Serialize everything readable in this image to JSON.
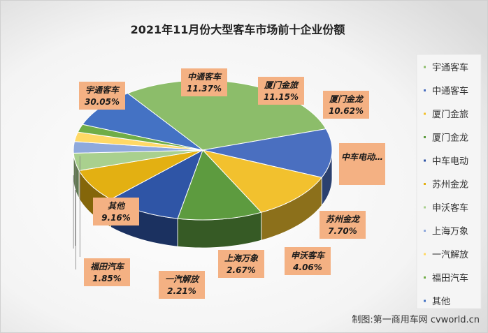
{
  "chart_data": {
    "type": "pie",
    "title": "2021年11月份大型客车市场前十企业份额",
    "slices": [
      {
        "name": "宇通客车",
        "value": 30.05,
        "label": "30.05%",
        "color": "#8cbd6a"
      },
      {
        "name": "中通客车",
        "value": 11.37,
        "label": "11.37%",
        "color": "#4a6fc0"
      },
      {
        "name": "厦门金旅",
        "value": 11.15,
        "label": "11.15%",
        "color": "#f2c12e"
      },
      {
        "name": "厦门金龙",
        "value": 10.62,
        "label": "10.62%",
        "color": "#5d9b3f"
      },
      {
        "name": "中车电动",
        "value": 9.5,
        "label": "",
        "color": "#2f55a6"
      },
      {
        "name": "苏州金龙",
        "value": 7.7,
        "label": "7.70%",
        "color": "#e3b012"
      },
      {
        "name": "申沃客车",
        "value": 4.06,
        "label": "4.06%",
        "color": "#a9d08e"
      },
      {
        "name": "上海万象",
        "value": 2.67,
        "label": "2.67%",
        "color": "#8fa9dc"
      },
      {
        "name": "一汽解放",
        "value": 2.21,
        "label": "2.21%",
        "color": "#ffd966"
      },
      {
        "name": "福田汽车",
        "value": 1.85,
        "label": "1.85%",
        "color": "#70ad47"
      },
      {
        "name": "其他",
        "value": 9.16,
        "label": "9.16%",
        "color": "#4472c4"
      }
    ],
    "callout_labels": [
      {
        "name": "宇通客车",
        "value": "30.05%"
      },
      {
        "name": "中通客车",
        "value": "11.37%"
      },
      {
        "name": "厦门金旅",
        "value": "11.15%"
      },
      {
        "name": "厦门金龙",
        "value": "10.62%"
      },
      {
        "name": "中车电动…",
        "value": ""
      },
      {
        "name": "苏州金龙",
        "value": "7.70%"
      },
      {
        "name": "申沃客车",
        "value": "4.06%"
      },
      {
        "name": "上海万象",
        "value": "2.67%"
      },
      {
        "name": "一汽解放",
        "value": "2.21%"
      },
      {
        "name": "福田汽车",
        "value": "1.85%"
      },
      {
        "name": "其他",
        "value": "9.16%"
      }
    ],
    "legend": {
      "placement": "right",
      "items": [
        "宇通客车",
        "中通客车",
        "厦门金旅",
        "厦门金龙",
        "中车电动",
        "苏州金龙",
        "申沃客车",
        "上海万象",
        "一汽解放",
        "福田汽车",
        "其他"
      ]
    },
    "style": "3d-pie"
  },
  "footer": "制图:第一商用车网 cvworld.cn",
  "colors": {
    "label_box": "#f4b183",
    "plot_bg_top": "#e4e4e4",
    "legend_bg": "#f5f5f5"
  }
}
